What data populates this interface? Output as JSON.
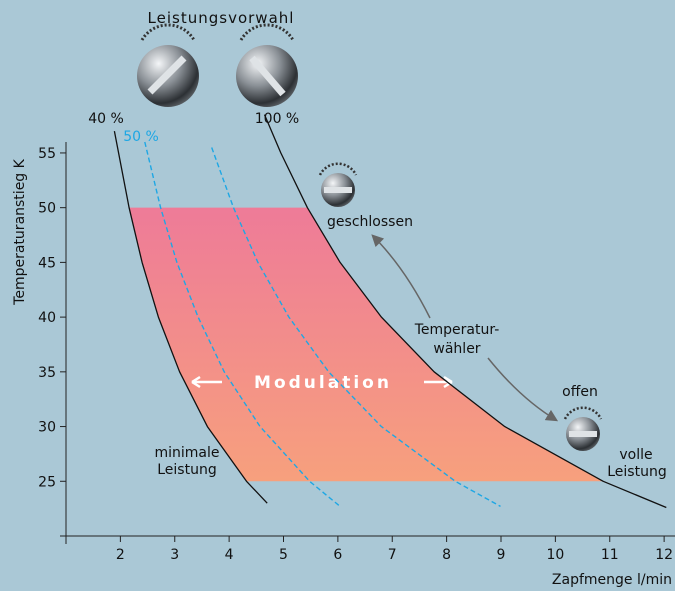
{
  "chart_data": {
    "type": "line",
    "title": "Leistungsvorwahl",
    "x_label": "Zapfmenge l/min",
    "y_label": "Temperaturanstieg K",
    "xlim": [
      1,
      12.2
    ],
    "ylim": [
      20,
      56
    ],
    "xticks": [
      2,
      3,
      4,
      5,
      6,
      7,
      8,
      9,
      10,
      11,
      12
    ],
    "yticks": [
      25,
      30,
      35,
      40,
      45,
      50,
      55
    ],
    "series": [
      {
        "name": "40 %",
        "color": "#111111",
        "dashed": false,
        "x": [
          1.89,
          2.16,
          2.4,
          2.7,
          3.09,
          3.6,
          4.32,
          4.7
        ],
        "values": [
          57,
          50,
          45,
          40,
          35,
          30,
          25,
          23
        ]
      },
      {
        "name": "50 %",
        "color": "#1ea7e4",
        "dashed": true,
        "x": [
          2.45,
          2.74,
          3.04,
          3.43,
          3.91,
          4.57,
          5.48,
          6.04
        ],
        "values": [
          56,
          50,
          45,
          40,
          35,
          30,
          25,
          22.7
        ]
      },
      {
        "color": "#1ea7e4",
        "dashed": true,
        "x": [
          3.68,
          4.08,
          4.53,
          5.1,
          5.83,
          6.8,
          8.16,
          8.99
        ],
        "values": [
          55.5,
          50,
          45,
          40,
          35,
          30,
          25,
          22.7
        ]
      },
      {
        "name": "100 %",
        "color": "#111111",
        "dashed": false,
        "x": [
          4.65,
          4.95,
          5.44,
          6.04,
          6.8,
          7.77,
          9.07,
          10.88,
          12.04
        ],
        "values": [
          58.5,
          55,
          50,
          45,
          40,
          35,
          30,
          25,
          22.6
        ]
      }
    ],
    "modulation_band": {
      "label": "Modulation",
      "y": [
        25,
        50
      ]
    },
    "annotations": [
      "geschlossen",
      "Temperatur-",
      "wähler",
      "offen",
      "volle",
      "Leistung",
      "minimale",
      "Leistung"
    ]
  }
}
